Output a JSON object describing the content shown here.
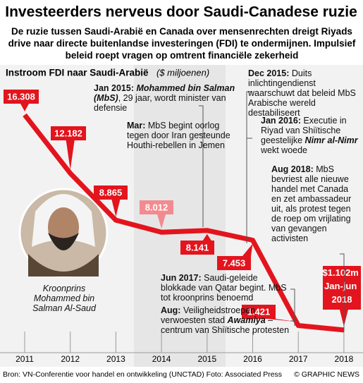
{
  "header": {
    "title": "Investeerders nerveus door Saudi-Canadese ruzie",
    "subtitle": "De ruzie tussen Saudi-Arabië en Canada over mensenrechten dreigt Riyads drive naar directe buitenlandse investeringen (FDI) te ondermijnen. Impulsief beleid roept vragen op omtrent financiële zekerheid"
  },
  "chart_data": {
    "type": "line",
    "title": "Instroom FDI naar Saudi-Arabië",
    "subtitle": "($ miljoenen)",
    "categories": [
      "2011",
      "2012",
      "2013",
      "2014",
      "2015",
      "2016",
      "2017",
      "2018"
    ],
    "values": [
      16.308,
      12.182,
      8.865,
      8.012,
      8.141,
      7.453,
      1.421,
      1.102
    ],
    "value_labels": [
      "16.308",
      "12.182",
      "8.865",
      "8.012",
      "8.141",
      "7.453",
      "1.421",
      "$1.102m Jan-jun 2018"
    ],
    "color": "#e3141d",
    "ylim": [
      0,
      17
    ],
    "annotations": [
      {
        "date": "Jan 2015:",
        "parts": [
          {
            "text": "Mohammed bin Salman (MbS)",
            "style": "bold-italic"
          },
          {
            "text": ", 29 jaar, wordt minister van defensie",
            "style": "normal"
          }
        ]
      },
      {
        "date": "Mar:",
        "parts": [
          {
            "text": "MbS begint oorlog tegen door Iran gesteunde Houthi-rebellen in Jemen",
            "style": "normal"
          }
        ]
      },
      {
        "date": "Dec 2015:",
        "parts": [
          {
            "text": "Duits inlichtingendienst waarschuwt dat beleid MbS Arabische wereld destabiliseert",
            "style": "normal"
          }
        ]
      },
      {
        "date": "Jan 2016:",
        "parts": [
          {
            "text": "Executie in Riyad van Shiïtische geestelijke ",
            "style": "normal"
          },
          {
            "text": "Nimr al-Nimr",
            "style": "bold-italic"
          },
          {
            "text": " wekt woede",
            "style": "normal"
          }
        ]
      },
      {
        "date": "Aug 2018:",
        "parts": [
          {
            "text": "MbS bevriest alle nieuwe handel met Canada en zet ambassadeur uit, als protest tegen de roep om vrijlating van gevangen activisten",
            "style": "normal"
          }
        ]
      },
      {
        "date": "Jun 2017:",
        "parts": [
          {
            "text": "Saudi-geleide blokkade van Qatar begint. MbS tot kroonprins benoemd",
            "style": "normal"
          }
        ]
      },
      {
        "date": "Aug:",
        "parts": [
          {
            "text": "Veiligheidstroepen verwoesten stad ",
            "style": "normal"
          },
          {
            "text": "Awamiya",
            "style": "bold-italic"
          },
          {
            "text": " – centrum van Shiïtische protesten",
            "style": "normal"
          }
        ]
      }
    ],
    "photo_caption": "Kroonprins Mohammed bin Salman Al-Saud"
  },
  "footer": {
    "source": "Bron: VN-Conferentie voor handel en ontwikkeling (UNCTAD)  Foto: Associated Press",
    "credit": "© GRAPHIC NEWS"
  }
}
